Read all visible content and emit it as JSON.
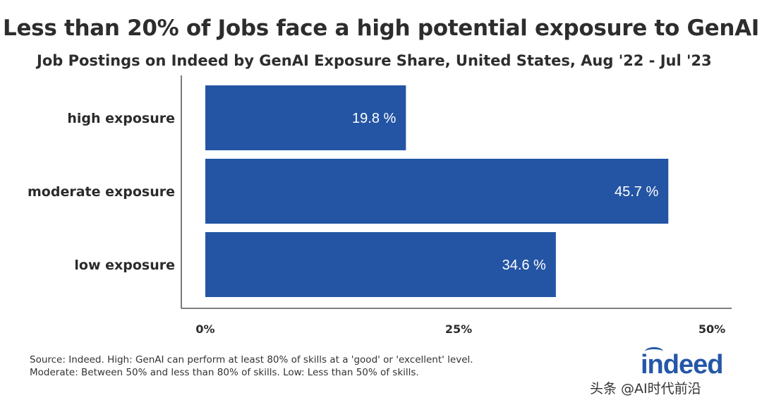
{
  "title": "Less than 20% of Jobs face a high potential exposure to GenAI",
  "subtitle": "Job Postings on Indeed by GenAI Exposure Share, United States, Aug '22 - Jul '23",
  "chart_data": {
    "type": "bar",
    "orientation": "horizontal",
    "title": "Less than 20% of Jobs face a high potential exposure to GenAI",
    "subtitle": "Job Postings on Indeed by GenAI Exposure Share, United States, Aug '22 - Jul '23",
    "categories": [
      "high exposure",
      "moderate exposure",
      "low exposure"
    ],
    "values": [
      19.8,
      45.7,
      34.6
    ],
    "data_labels": [
      "19.8 %",
      "45.7 %",
      "34.6 %"
    ],
    "xlim": [
      0,
      50
    ],
    "ticks": [
      0,
      25,
      50
    ],
    "tick_labels": [
      "0%",
      "25%",
      "50%"
    ],
    "xlabel": "",
    "ylabel": "",
    "bar_color": "#2455a4",
    "grid": false
  },
  "source": {
    "line1": "Source: Indeed. High: GenAI can perform at least 80% of skills at a 'good' or 'excellent' level.",
    "line2": " Moderate: Between 50% and less than 80% of skills. Low: Less than 50% of skills."
  },
  "logo": {
    "text": "indeed",
    "color": "#2557a7"
  },
  "watermark": "头条 @AI时代前沿"
}
